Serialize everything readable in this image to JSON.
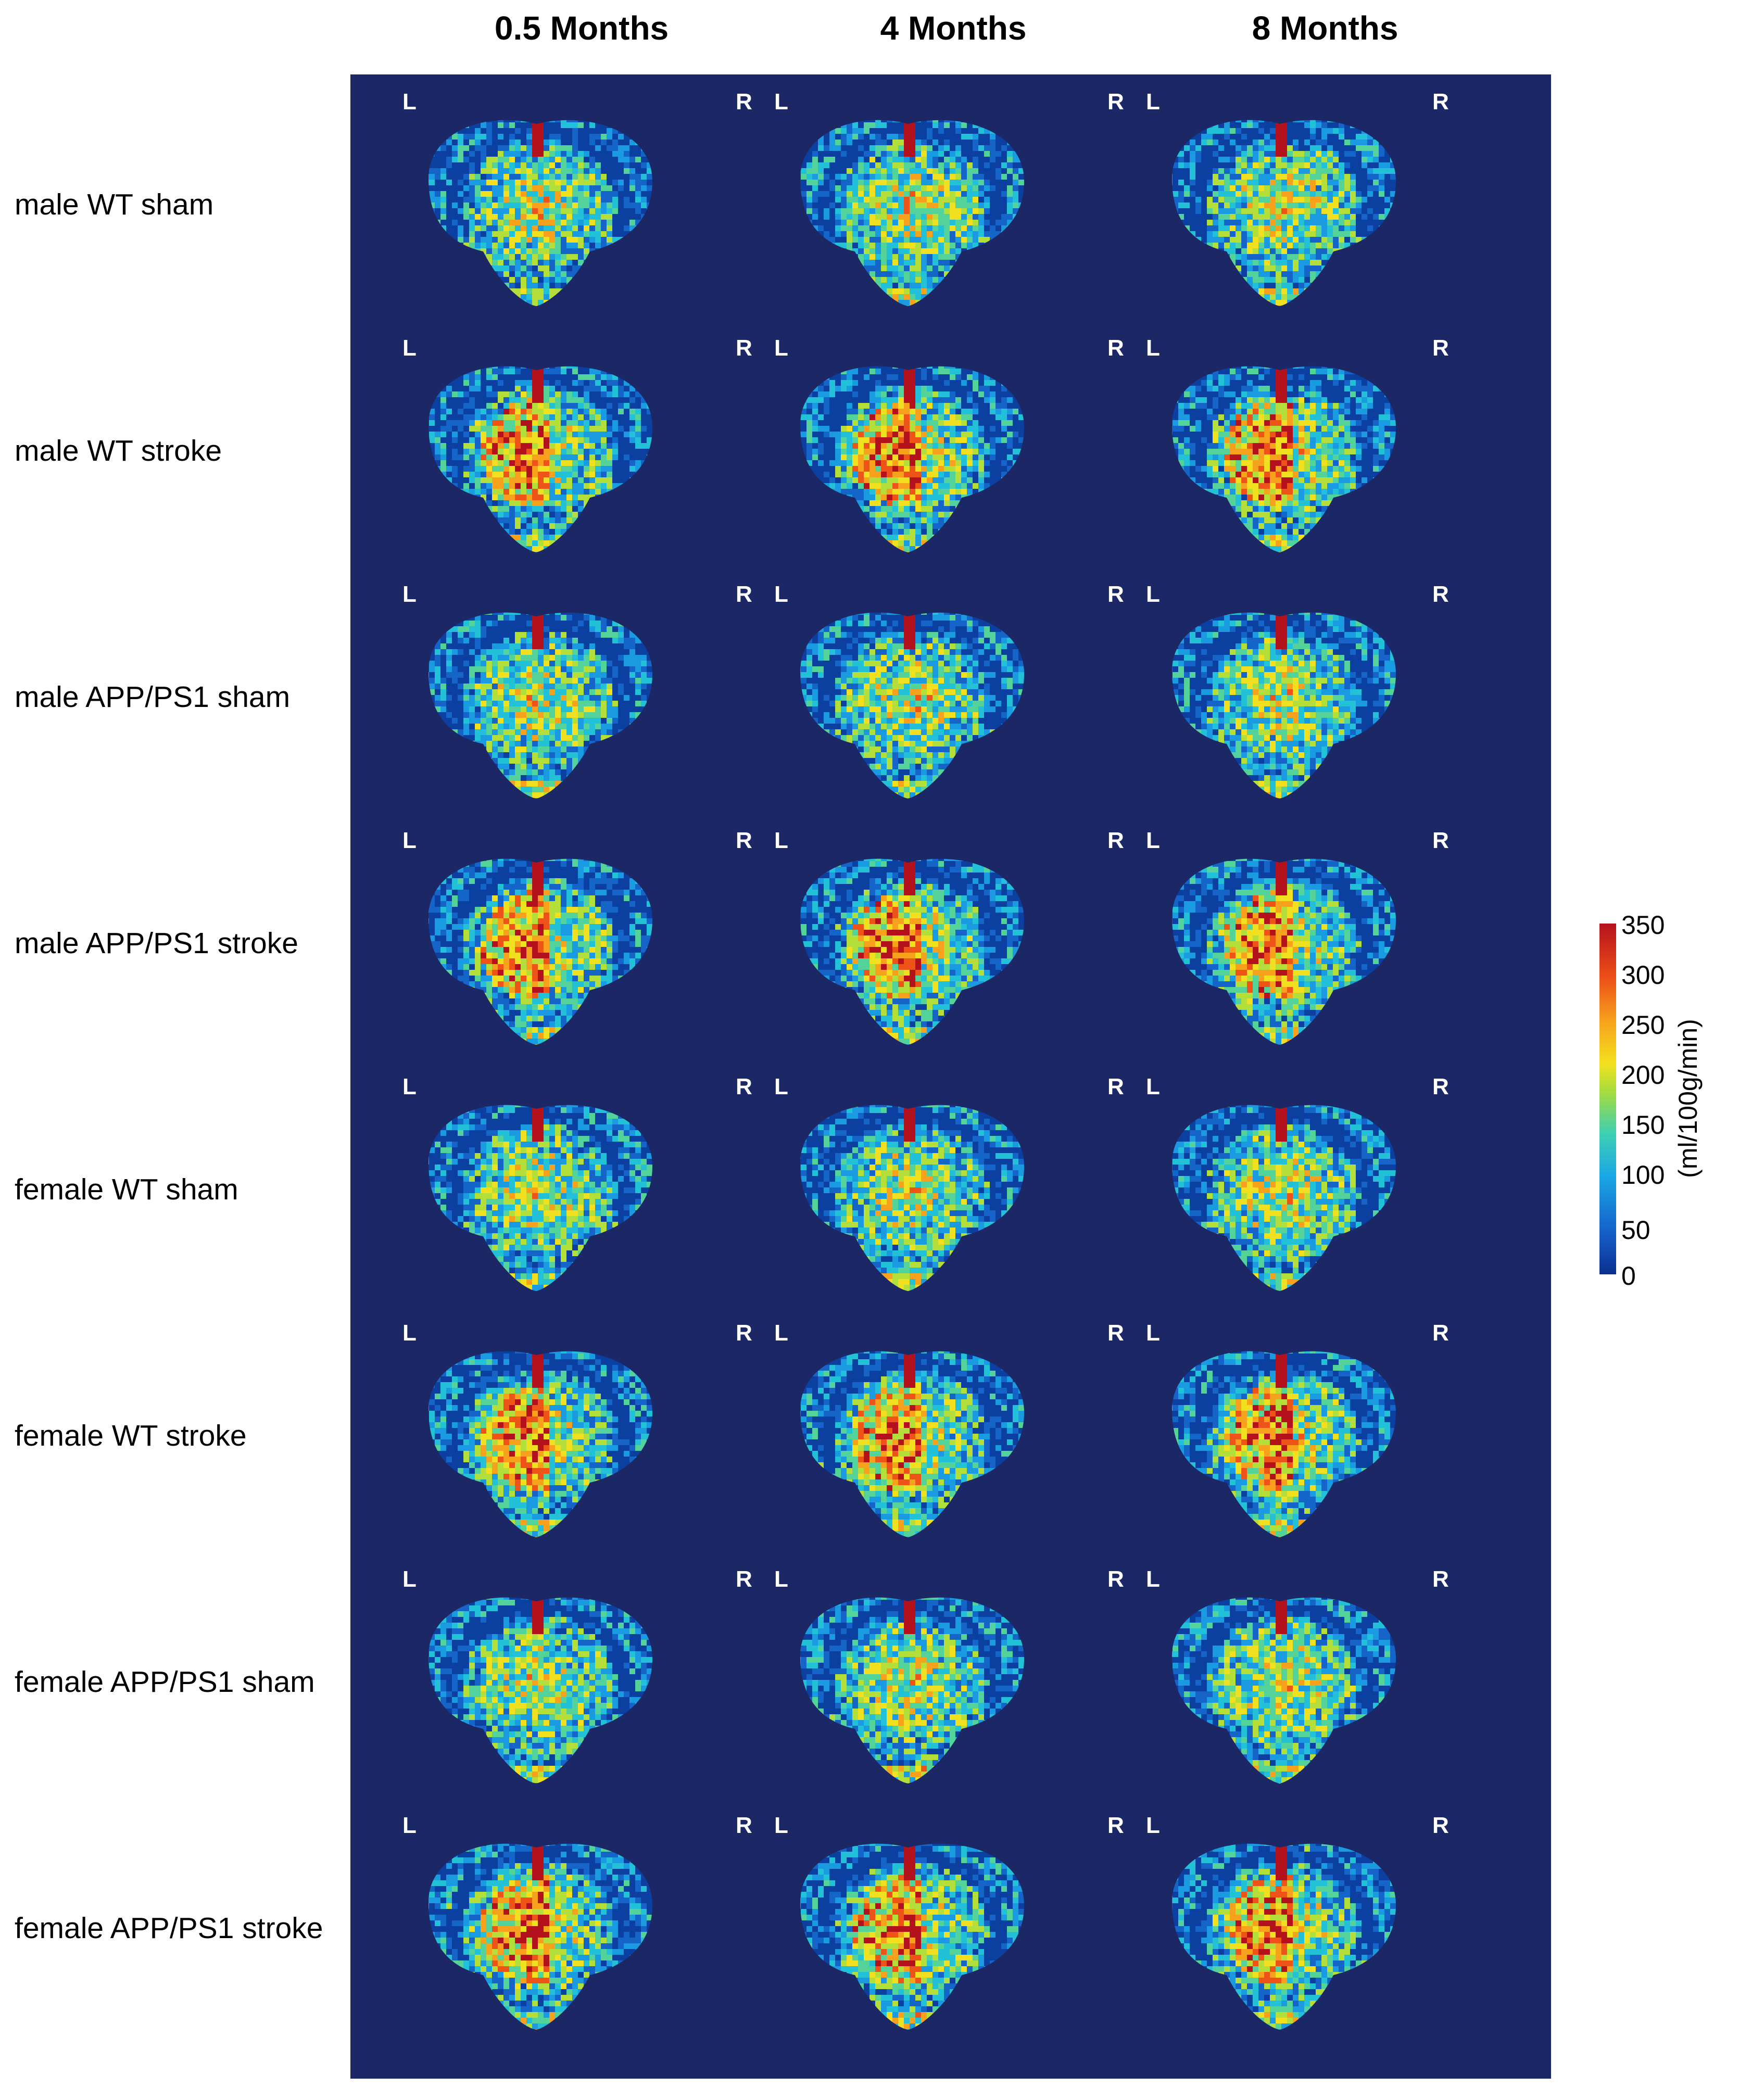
{
  "columns": [
    "0.5 Months",
    "4 Months",
    "8 Months"
  ],
  "rows": [
    "male WT sham",
    "male WT stroke",
    "male APP/PS1 sham",
    "male APP/PS1 stroke",
    "female WT sham",
    "female WT stroke",
    "female APP/PS1 sham",
    "female APP/PS1 stroke"
  ],
  "orientation": {
    "left": "L",
    "right": "R"
  },
  "colorbar": {
    "label": "(ml/100g/min)",
    "ticks": [
      "350",
      "300",
      "250",
      "200",
      "150",
      "100",
      "50",
      "0"
    ],
    "min": 0,
    "max": 350
  },
  "colors": {
    "background": "#1c2866",
    "low": "#0b2f8f",
    "mid": "#f3e11f",
    "high": "#b5121d"
  }
}
